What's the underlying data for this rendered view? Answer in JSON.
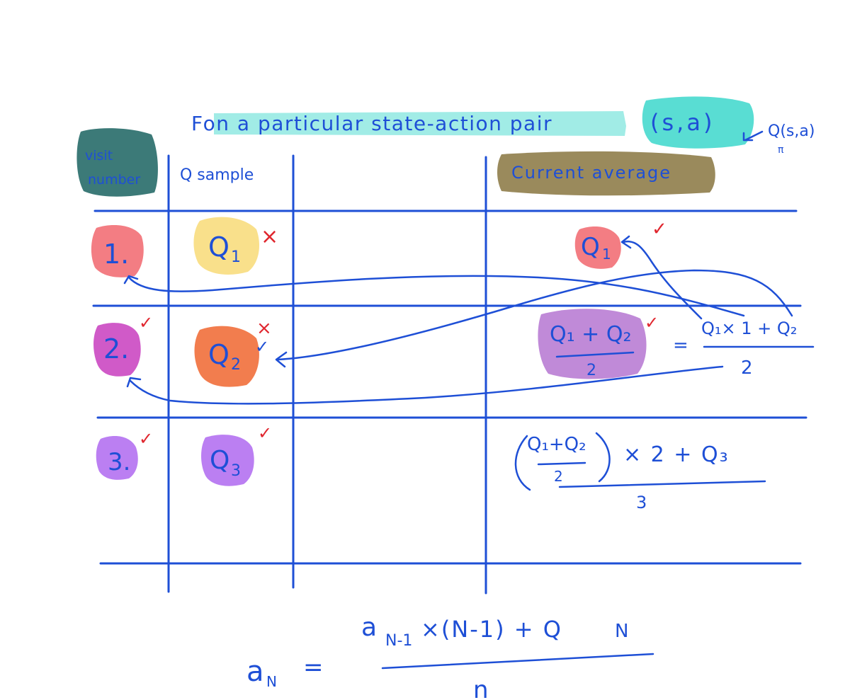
{
  "colors": {
    "ink": "#1e4fd6",
    "tick": "#e0262e",
    "teal": "#2fd4c8",
    "slate": "#3c7a78",
    "khaki": "#9a8a5c",
    "salmon": "#f37d83",
    "butter": "#f9e08b",
    "orange": "#f27d4e",
    "purple": "#bb7ff2",
    "magenta": "#d05ac8",
    "mauve": "#c08ad8"
  },
  "title": {
    "prefix": "Fon a particular state-action pair",
    "pair": "(s,a)",
    "qpi_arrow": "↖",
    "qpi_label": "Q(s,a)",
    "qpi_sub": "π"
  },
  "header": {
    "visit_line1": "visit",
    "visit_line2": "number",
    "q_sample": "Q sample",
    "current_average": "Current average"
  },
  "rows": [
    {
      "visit": "1.",
      "sample": "Q",
      "sample_sub": "1",
      "sample_mark": "×",
      "average": "Q",
      "average_sub": "1",
      "average_mark": "✓"
    },
    {
      "visit": "2.",
      "visit_mark": "✓",
      "sample": "Q",
      "sample_sub": "2",
      "sample_mark_x": "×",
      "sample_mark_check": "✓",
      "avg_numerator": "Q₁ + Q₂",
      "avg_denominator": "2",
      "avg_mark": "✓",
      "equals": "=",
      "alt_numerator": "Q₁× 1 + Q₂",
      "alt_denominator": "2"
    },
    {
      "visit": "3.",
      "visit_mark": "✓",
      "sample": "Q",
      "sample_sub": "3",
      "sample_mark": "✓",
      "inner_numerator": "Q₁+Q₂",
      "inner_denominator": "2",
      "outer_rest": "× 2 + Q₃",
      "outer_denominator": "3"
    }
  ],
  "formula": {
    "lhs": "a",
    "lhs_sub": "N",
    "equals": "=",
    "numerator": "a",
    "numerator_sub": "N-1",
    "numerator_rest": "×(N-1) + Q",
    "numerator_q_sub": "N",
    "denominator": "n"
  }
}
